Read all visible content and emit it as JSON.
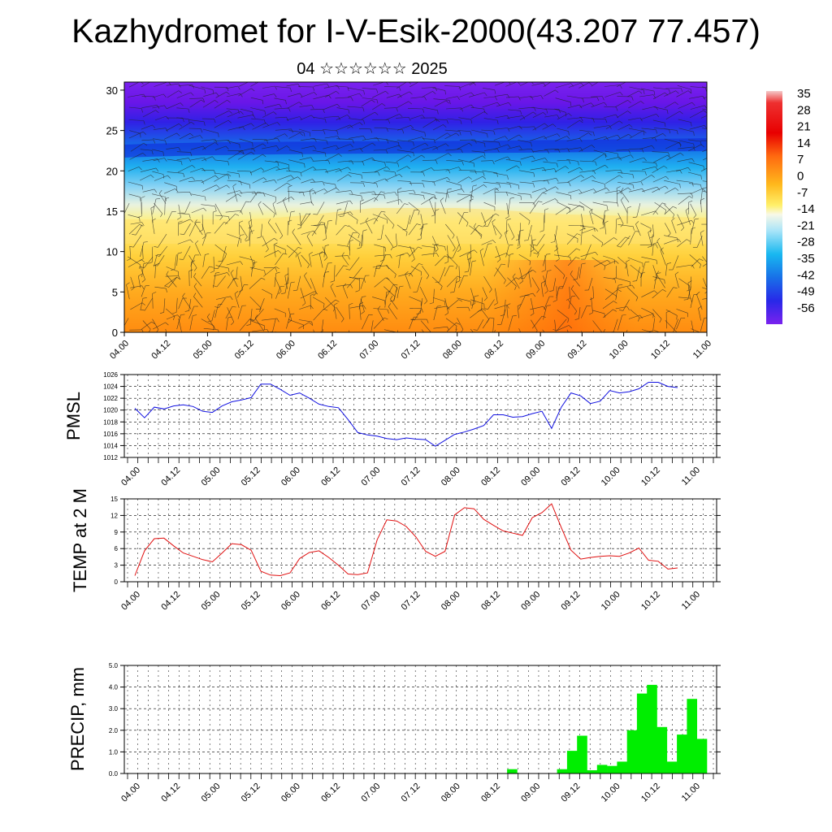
{
  "title": "Kazhydromet for I-V-Esik-2000(43.207 77.457)",
  "subtitle": "04 ☆☆☆☆☆☆ 2025",
  "colors": {
    "pmsl": "#1010e0",
    "temp": "#e01010",
    "precip": "#00ee00"
  },
  "chart_data": [
    {
      "type": "heatmap",
      "title": "",
      "ylim": [
        0,
        31
      ],
      "yticks": [
        "0",
        "5",
        "10",
        "15",
        "20",
        "25",
        "30"
      ],
      "xticks": [
        "04.00",
        "04.12",
        "05.00",
        "05.12",
        "06.00",
        "06.12",
        "07.00",
        "07.12",
        "08.00",
        "08.12",
        "09.00",
        "09.12",
        "10.00",
        "10.12",
        "11.00"
      ],
      "colorbar_labels": [
        "35",
        "28",
        "21",
        "14",
        "7",
        "0",
        "-7",
        "-14",
        "-21",
        "-28",
        "-35",
        "-42",
        "-49",
        "-56"
      ],
      "overlay": "wind barbs"
    },
    {
      "type": "line",
      "ylabel": "PMSL",
      "ylim": [
        1012,
        1026
      ],
      "yticks": [
        "1012",
        "1014",
        "1016",
        "1018",
        "1020",
        "1022",
        "1024",
        "1026"
      ],
      "xticks": [
        "04.00",
        "04.12",
        "05.00",
        "05.12",
        "06.00",
        "06.12",
        "07.00",
        "07.12",
        "08.00",
        "08.12",
        "09.00",
        "09.12",
        "10.00",
        "10.12",
        "11.00"
      ],
      "series": [
        {
          "values": [
            1020.3,
            1018.7,
            1020.5,
            1020.2,
            1020.7,
            1020.9,
            1020.6,
            1019.8,
            1019.6,
            1020.7,
            1021.4,
            1021.7,
            1022.1,
            1024.4,
            1024.4,
            1023.5,
            1022.5,
            1022.9,
            1022.0,
            1021.0,
            1020.6,
            1020.4,
            1018.4,
            1016.2,
            1015.8,
            1015.6,
            1015.2,
            1015.0,
            1015.3,
            1015.1,
            1015.0,
            1013.9,
            1014.9,
            1015.9,
            1016.3,
            1016.8,
            1017.4,
            1019.2,
            1019.2,
            1018.8,
            1018.9,
            1019.4,
            1019.8,
            1016.9,
            1020.5,
            1022.9,
            1022.4,
            1021.1,
            1021.5,
            1023.3,
            1022.9,
            1023.1,
            1023.6,
            1024.7,
            1024.7,
            1024.0,
            1023.8
          ]
        }
      ]
    },
    {
      "type": "line",
      "ylabel": "TEMP at 2 M",
      "ylim": [
        0,
        15
      ],
      "yticks": [
        "0",
        "3",
        "6",
        "9",
        "12",
        "15"
      ],
      "xticks": [
        "04.00",
        "04.12",
        "05.00",
        "05.12",
        "06.00",
        "06.12",
        "07.00",
        "07.12",
        "08.00",
        "08.12",
        "09.00",
        "09.12",
        "10.00",
        "10.12",
        "11.00"
      ],
      "series": [
        {
          "values": [
            1.1,
            5.6,
            7.8,
            7.9,
            6.5,
            5.2,
            4.6,
            4.0,
            3.6,
            5.2,
            6.9,
            6.7,
            5.7,
            1.9,
            1.2,
            1.1,
            1.6,
            4.2,
            5.3,
            5.6,
            4.4,
            3.0,
            1.4,
            1.3,
            1.6,
            7.6,
            11.2,
            11.0,
            10.0,
            8.1,
            5.5,
            4.6,
            5.5,
            12.1,
            13.4,
            13.2,
            11.3,
            10.2,
            9.2,
            8.8,
            8.4,
            11.6,
            12.5,
            14.1,
            9.8,
            5.7,
            4.1,
            4.4,
            4.6,
            4.7,
            4.6,
            5.2,
            6.1,
            3.9,
            3.7,
            2.3,
            2.5
          ]
        }
      ]
    },
    {
      "type": "bar",
      "ylabel": "PRECIP, mm",
      "ylim": [
        0,
        5
      ],
      "yticks": [
        "0.0",
        "1.0",
        "2.0",
        "3.0",
        "4.0",
        "5.0"
      ],
      "xticks": [
        "04.00",
        "04.12",
        "05.00",
        "05.12",
        "06.00",
        "06.12",
        "07.00",
        "07.12",
        "08.00",
        "08.12",
        "09.00",
        "09.12",
        "10.00",
        "10.12",
        "11.00"
      ],
      "values": [
        0,
        0,
        0,
        0,
        0,
        0,
        0,
        0,
        0,
        0,
        0,
        0,
        0,
        0,
        0,
        0,
        0,
        0,
        0,
        0,
        0,
        0,
        0,
        0,
        0,
        0,
        0,
        0,
        0,
        0,
        0,
        0,
        0,
        0,
        0,
        0,
        0,
        0,
        0.2,
        0,
        0,
        0,
        0,
        0.2,
        1.05,
        1.75,
        0.15,
        0.4,
        0.35,
        0.55,
        2.0,
        3.7,
        4.1,
        2.15,
        0.55,
        1.8,
        3.45,
        1.6
      ]
    }
  ]
}
